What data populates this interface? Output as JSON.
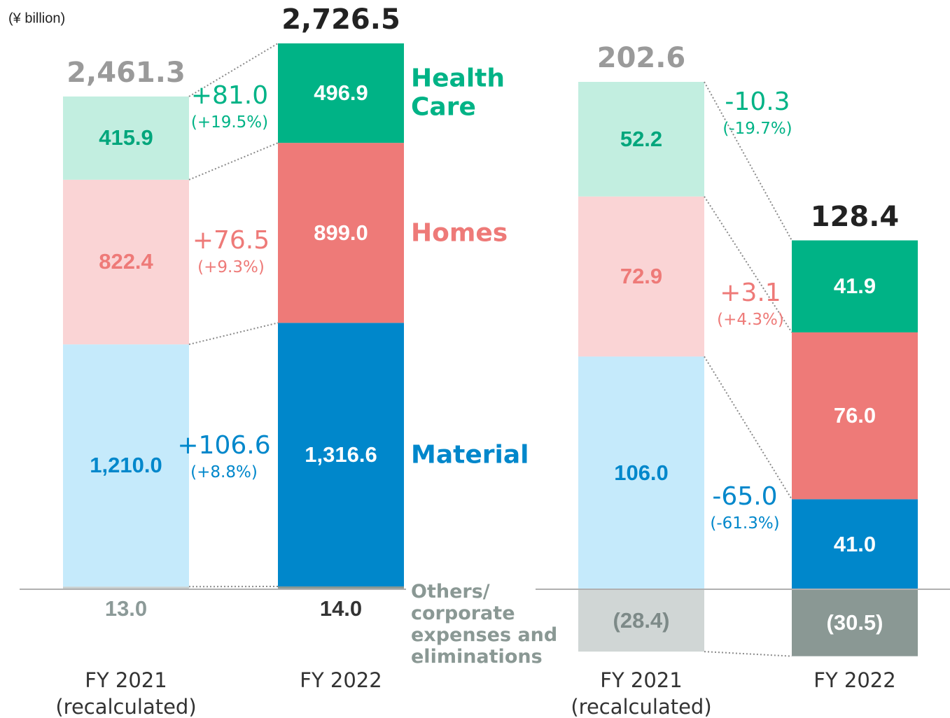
{
  "chart_data": [
    {
      "type": "bar",
      "stacked": true,
      "unit": "(¥ billion)",
      "categories": [
        "FY 2021\n(recalculated)",
        "FY 2022"
      ],
      "totals": [
        {
          "value": 2461.3,
          "label": "2,461.3"
        },
        {
          "value": 2726.5,
          "label": "2,726.5"
        }
      ],
      "total_colors": [
        "#9a9a9a",
        "#222222"
      ],
      "series": [
        {
          "name": "Others/\ncorporate\nexpenses and\neliminations",
          "colors": [
            "#c8cfce",
            "#8a9894"
          ],
          "label_colors": [
            "#8c9a98",
            "#333333"
          ],
          "values": [
            13.0,
            14.0
          ],
          "value_labels": [
            "13.0",
            "14.0"
          ]
        },
        {
          "name": "Material",
          "colors": [
            "#c5eafb",
            "#0087cb"
          ],
          "label_colors": [
            "#0087cb",
            "#ffffff"
          ],
          "values": [
            1210.0,
            1316.6
          ],
          "value_labels": [
            "1,210.0",
            "1,316.6"
          ],
          "change": "+106.6",
          "change_pct": "(+8.8%)"
        },
        {
          "name": "Homes",
          "colors": [
            "#fad4d5",
            "#ee7a78"
          ],
          "label_colors": [
            "#ee7a78",
            "#ffffff"
          ],
          "values": [
            822.4,
            899.0
          ],
          "value_labels": [
            "822.4",
            "899.0"
          ],
          "change": "+76.5",
          "change_pct": "(+9.3%)"
        },
        {
          "name": "Health\nCare",
          "colors": [
            "#c2eee0",
            "#00b386"
          ],
          "label_colors": [
            "#00a67c",
            "#ffffff"
          ],
          "values": [
            415.9,
            496.9
          ],
          "value_labels": [
            "415.9",
            "496.9"
          ],
          "change": "+81.0",
          "change_pct": "(+19.5%)"
        }
      ]
    },
    {
      "type": "bar",
      "stacked": true,
      "categories": [
        "FY 2021\n(recalculated)",
        "FY 2022"
      ],
      "totals": [
        {
          "value": 202.6,
          "label": "202.6"
        },
        {
          "value": 128.4,
          "label": "128.4"
        }
      ],
      "total_colors": [
        "#9a9a9a",
        "#222222"
      ],
      "series": [
        {
          "colors": [
            "#d0d6d5",
            "#8a9894"
          ],
          "label_colors": [
            "#7d8a88",
            "#ffffff"
          ],
          "values": [
            -28.4,
            -30.5
          ],
          "value_labels": [
            "(28.4)",
            "(30.5)"
          ]
        },
        {
          "colors": [
            "#c5eafb",
            "#0087cb"
          ],
          "label_colors": [
            "#0087cb",
            "#ffffff"
          ],
          "values": [
            106.0,
            41.0
          ],
          "value_labels": [
            "106.0",
            "41.0"
          ],
          "change": "-65.0",
          "change_pct": "(-61.3%)"
        },
        {
          "colors": [
            "#fad4d5",
            "#ee7a78"
          ],
          "label_colors": [
            "#ee7a78",
            "#ffffff"
          ],
          "values": [
            72.9,
            76.0
          ],
          "value_labels": [
            "72.9",
            "76.0"
          ],
          "change": "+3.1",
          "change_pct": "(+4.3%)"
        },
        {
          "colors": [
            "#c2eee0",
            "#00b386"
          ],
          "label_colors": [
            "#00a67c",
            "#ffffff"
          ],
          "values": [
            52.2,
            41.9
          ],
          "value_labels": [
            "52.2",
            "41.9"
          ],
          "change": "-10.3",
          "change_pct": "(-19.7%)"
        }
      ]
    }
  ]
}
